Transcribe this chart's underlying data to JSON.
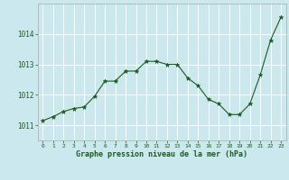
{
  "x": [
    0,
    1,
    2,
    3,
    4,
    5,
    6,
    7,
    8,
    9,
    10,
    11,
    12,
    13,
    14,
    15,
    16,
    17,
    18,
    19,
    20,
    21,
    22,
    23
  ],
  "y": [
    1011.15,
    1011.28,
    1011.45,
    1011.55,
    1011.6,
    1011.95,
    1012.45,
    1012.45,
    1012.78,
    1012.78,
    1013.1,
    1013.1,
    1013.0,
    1013.0,
    1012.55,
    1012.3,
    1011.85,
    1011.7,
    1011.35,
    1011.35,
    1011.7,
    1012.65,
    1013.8,
    1014.55
  ],
  "line_color": "#1a5c1a",
  "marker": "*",
  "marker_color": "#1a5c1a",
  "bg_color": "#cce8ef",
  "grid_color": "#ffffff",
  "spine_color": "#aaaaaa",
  "xlabel": "Graphe pression niveau de la mer (hPa)",
  "xlabel_color": "#1a5c1a",
  "tick_label_color": "#1a5c1a",
  "ylim": [
    1010.5,
    1015.0
  ],
  "yticks": [
    1011,
    1012,
    1013,
    1014
  ],
  "xticks": [
    0,
    1,
    2,
    3,
    4,
    5,
    6,
    7,
    8,
    9,
    10,
    11,
    12,
    13,
    14,
    15,
    16,
    17,
    18,
    19,
    20,
    21,
    22,
    23
  ],
  "figsize": [
    3.2,
    2.0
  ],
  "dpi": 100
}
